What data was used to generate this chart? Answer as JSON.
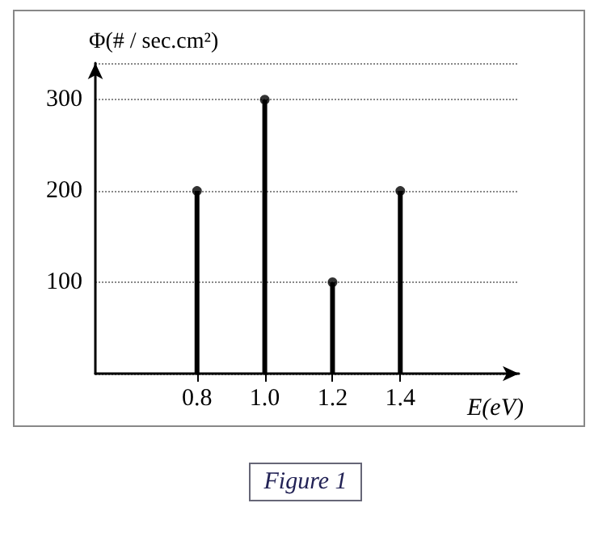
{
  "chart_data": {
    "type": "lollipop",
    "xlabel": "E(eV)",
    "ylabel": "Φ(# / sec.cm²)",
    "annotations": [
      "Figure 1"
    ],
    "x": [
      0.8,
      1.0,
      1.2,
      1.4
    ],
    "values": [
      200,
      300,
      100,
      200
    ],
    "color": "#000000",
    "xlim": [
      0.5,
      1.75
    ],
    "xticks": [
      0.8,
      {
        "value": 1.0,
        "label": "1.0"
      },
      1.2,
      1.4
    ],
    "ylim": [
      0,
      340
    ],
    "yticks": [
      100,
      200,
      300
    ],
    "grid": "y",
    "marker": "circle"
  }
}
